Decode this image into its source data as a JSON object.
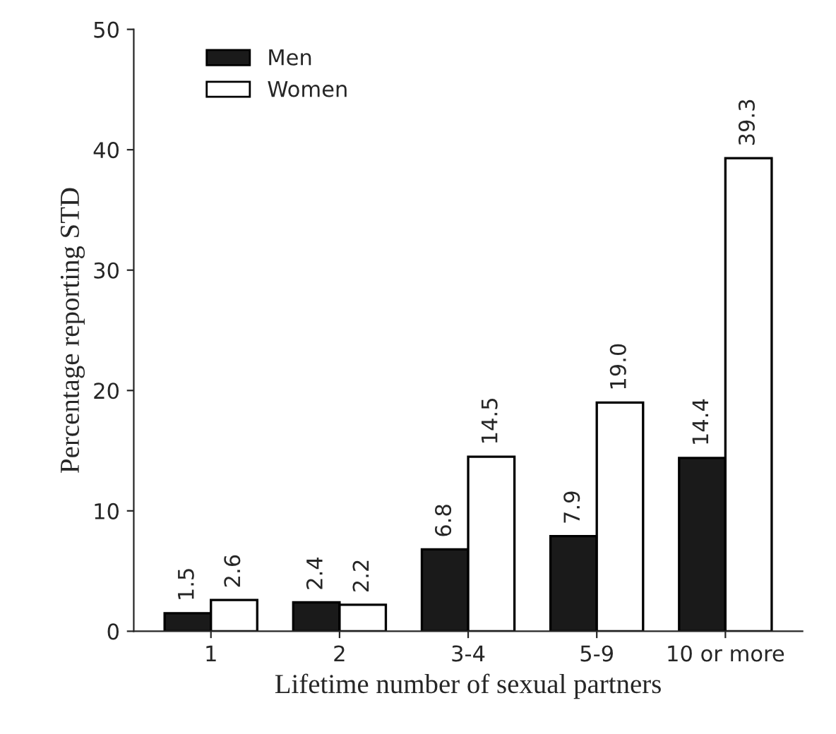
{
  "chart_data": {
    "type": "bar",
    "xlabel": "Lifetime number of sexual partners",
    "ylabel": "Percentage reporting STD",
    "categories": [
      "1",
      "2",
      "3-4",
      "5-9",
      "10 or more"
    ],
    "series": [
      {
        "name": "Men",
        "color": "#1a1a1a",
        "values": [
          1.5,
          2.4,
          6.8,
          7.9,
          14.4
        ],
        "value_labels": [
          "1.5",
          "2.4",
          "6.8",
          "7.9",
          "14.4"
        ]
      },
      {
        "name": "Women",
        "color": "#ffffff",
        "values": [
          2.6,
          2.2,
          14.5,
          19.0,
          39.3
        ],
        "value_labels": [
          "2.6",
          "2.2",
          "14.5",
          "19.0",
          "39.3"
        ]
      }
    ],
    "ylim": [
      0,
      50
    ],
    "yticks": [
      0,
      10,
      20,
      30,
      40,
      50
    ],
    "legend": "top left",
    "grid": false
  }
}
